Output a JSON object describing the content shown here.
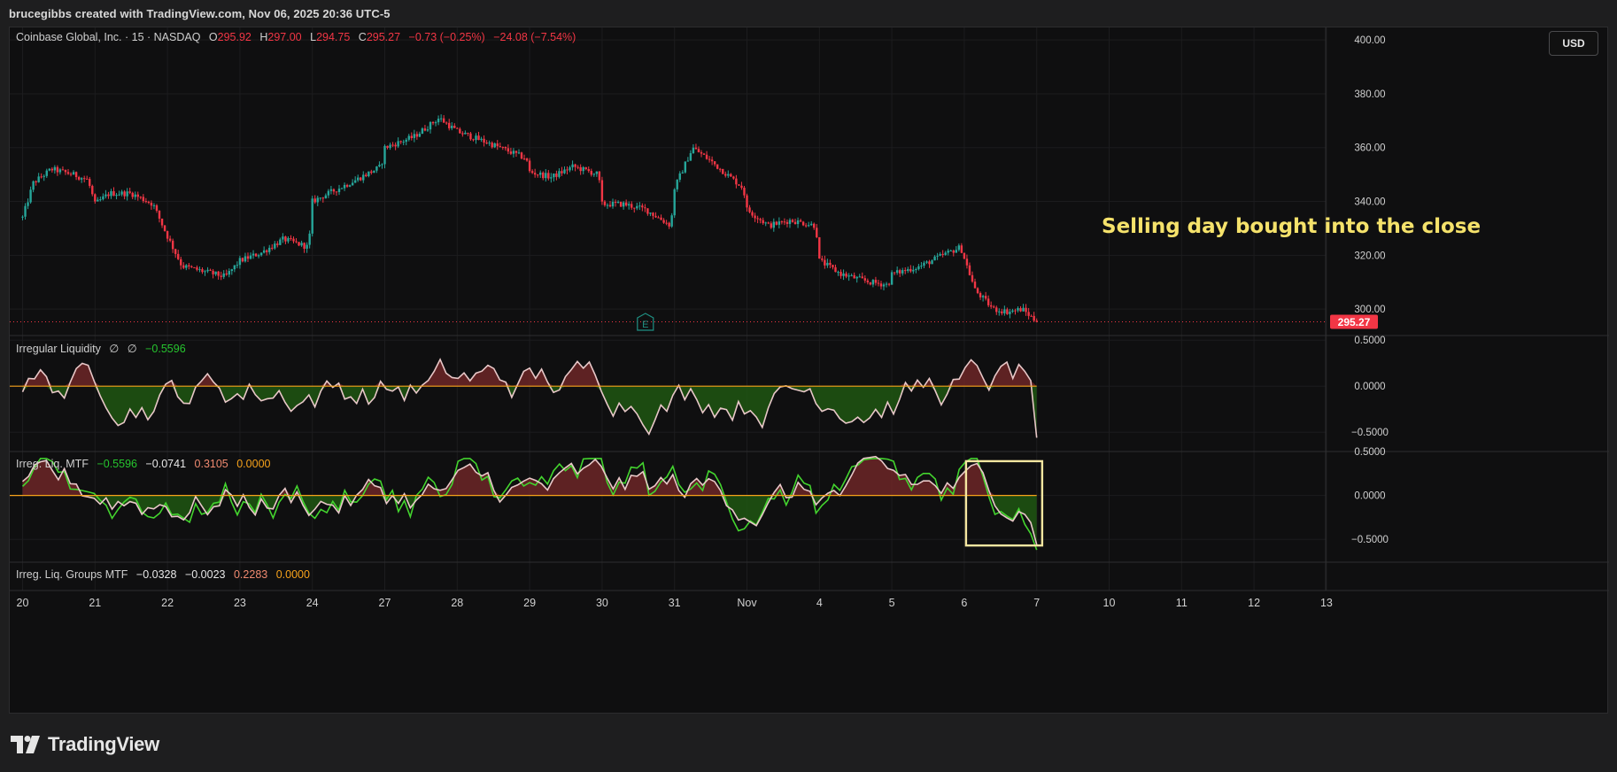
{
  "header": {
    "credit": "brucegibbs created with TradingView.com, Nov 06, 2025 20:36 UTC-5"
  },
  "symbol_legend": {
    "name": "Coinbase Global, Inc. · 15 · NASDAQ",
    "open_label": "O",
    "open": "295.92",
    "high_label": "H",
    "high": "297.00",
    "low_label": "L",
    "low": "294.75",
    "close_label": "C",
    "close": "295.27",
    "change": "−0.73 (−0.25%)",
    "change2": "−24.08 (−7.54%)"
  },
  "currency": "USD",
  "last_price_label": "295.27",
  "annotation": "Selling day bought into the close",
  "earnings_marker": "E",
  "indicators": {
    "irregular_liquidity": {
      "name": "Irregular Liquidity",
      "p1": "∅",
      "p2": "∅",
      "value": "−0.5596"
    },
    "mtf": {
      "name": "Irreg. Liq. MTF",
      "v1": "−0.5596",
      "v2": "−0.0741",
      "v3": "0.3105",
      "v4": "0.0000"
    },
    "groups_mtf": {
      "name": "Irreg. Liq. Groups MTF",
      "v1": "−0.0328",
      "v2": "−0.0023",
      "v3": "0.2283",
      "v4": "0.0000"
    }
  },
  "colors": {
    "up": "#26a69a",
    "down": "#f23645",
    "zero_line": "#f7a21b",
    "osc_up": "#f23645",
    "osc_down": "#26c52e",
    "osc_line": "#e8c8c8",
    "annotation": "#f5e26b",
    "highlight_box": "#f5e6a0"
  },
  "brand": "TradingView",
  "chart_data": [
    {
      "type": "candlestick",
      "title": "Coinbase Global, Inc. · 15 · NASDAQ",
      "x_ticks": [
        "20",
        "21",
        "22",
        "23",
        "24",
        "27",
        "28",
        "29",
        "30",
        "31",
        "Nov",
        "4",
        "5",
        "6",
        "7",
        "10",
        "11",
        "12",
        "13"
      ],
      "y_ticks": [
        "400.00",
        "380.00",
        "360.00",
        "340.00",
        "320.00",
        "300.00"
      ],
      "ylim": [
        290.5,
        404
      ],
      "last_price": 295.27,
      "path_points": [
        {
          "d": 0,
          "p": 334
        },
        {
          "d": 0.15,
          "p": 347
        },
        {
          "d": 0.4,
          "p": 352
        },
        {
          "d": 0.7,
          "p": 350
        },
        {
          "d": 0.9,
          "p": 348
        },
        {
          "d": 1.0,
          "p": 339
        },
        {
          "d": 1.2,
          "p": 343
        },
        {
          "d": 1.5,
          "p": 343
        },
        {
          "d": 1.8,
          "p": 339
        },
        {
          "d": 2.0,
          "p": 327
        },
        {
          "d": 2.2,
          "p": 316
        },
        {
          "d": 2.5,
          "p": 314
        },
        {
          "d": 2.8,
          "p": 312
        },
        {
          "d": 3.0,
          "p": 318
        },
        {
          "d": 3.3,
          "p": 321
        },
        {
          "d": 3.6,
          "p": 326
        },
        {
          "d": 3.95,
          "p": 323
        },
        {
          "d": 4.0,
          "p": 340
        },
        {
          "d": 4.3,
          "p": 344
        },
        {
          "d": 4.6,
          "p": 348
        },
        {
          "d": 4.95,
          "p": 353
        },
        {
          "d": 5.0,
          "p": 360
        },
        {
          "d": 5.4,
          "p": 364
        },
        {
          "d": 5.75,
          "p": 371
        },
        {
          "d": 6.0,
          "p": 366
        },
        {
          "d": 6.5,
          "p": 361
        },
        {
          "d": 6.95,
          "p": 356
        },
        {
          "d": 7.0,
          "p": 351
        },
        {
          "d": 7.3,
          "p": 349
        },
        {
          "d": 7.6,
          "p": 353
        },
        {
          "d": 7.95,
          "p": 350
        },
        {
          "d": 8.0,
          "p": 339
        },
        {
          "d": 8.3,
          "p": 339
        },
        {
          "d": 8.6,
          "p": 337
        },
        {
          "d": 8.95,
          "p": 331
        },
        {
          "d": 9.0,
          "p": 345
        },
        {
          "d": 9.25,
          "p": 360
        },
        {
          "d": 9.5,
          "p": 355
        },
        {
          "d": 9.95,
          "p": 345
        },
        {
          "d": 10.0,
          "p": 337
        },
        {
          "d": 10.3,
          "p": 331
        },
        {
          "d": 10.6,
          "p": 333
        },
        {
          "d": 10.95,
          "p": 331
        },
        {
          "d": 11.0,
          "p": 318
        },
        {
          "d": 11.3,
          "p": 313
        },
        {
          "d": 11.7,
          "p": 310
        },
        {
          "d": 11.95,
          "p": 309
        },
        {
          "d": 12.0,
          "p": 313
        },
        {
          "d": 12.4,
          "p": 316
        },
        {
          "d": 12.7,
          "p": 320
        },
        {
          "d": 12.95,
          "p": 323
        },
        {
          "d": 13.0,
          "p": 319
        },
        {
          "d": 13.15,
          "p": 307
        },
        {
          "d": 13.4,
          "p": 300
        },
        {
          "d": 13.6,
          "p": 299
        },
        {
          "d": 13.8,
          "p": 300
        },
        {
          "d": 13.95,
          "p": 296.5
        },
        {
          "d": 14.0,
          "p": 295.27
        }
      ]
    },
    {
      "type": "area",
      "title": "Irregular Liquidity",
      "y_ticks": [
        "0.5000",
        "0.0000",
        "−0.5000"
      ],
      "ylim": [
        -0.7,
        0.55
      ],
      "last_value": -0.5596
    },
    {
      "type": "area",
      "title": "Irreg. Liq. MTF",
      "y_ticks": [
        "0.5000",
        "0.0000",
        "−0.5000"
      ],
      "ylim": [
        -0.75,
        0.5
      ],
      "last_value": -0.5596
    }
  ]
}
